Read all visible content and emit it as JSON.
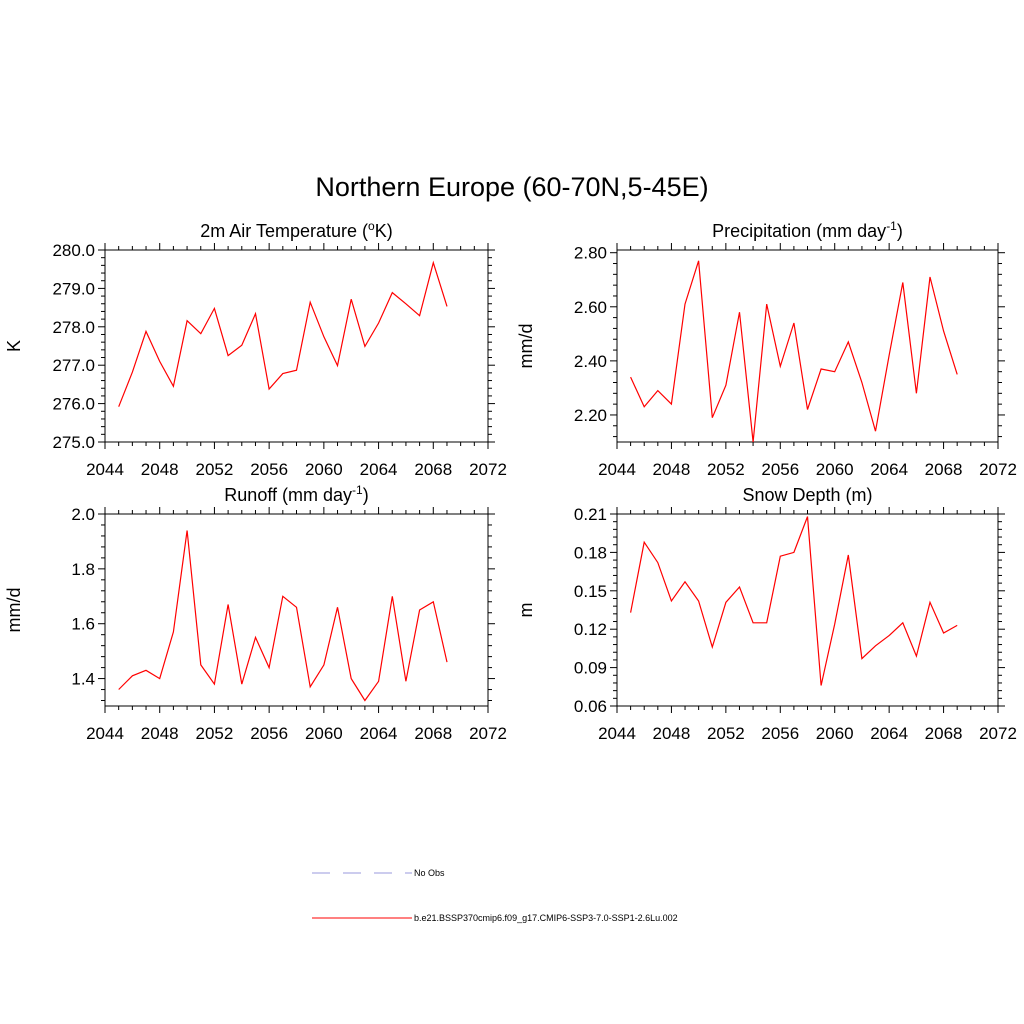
{
  "figure": {
    "title": "Northern Europe (60-70N,5-45E)"
  },
  "legend": {
    "entries": [
      {
        "label": "No Obs",
        "color": "#9999dd",
        "style": "dashed"
      },
      {
        "label": "b.e21.BSSP370cmip6.f09_g17.CMIP6-SSP3-7.0-SSP1-2.6Lu.002",
        "color": "#ff0000",
        "style": "solid"
      }
    ]
  },
  "chart_data": [
    {
      "type": "line",
      "title": "2m Air Temperature (°K)",
      "title_parts": {
        "base": "2m Air Temperature (",
        "sup": "o",
        "after": "K)"
      },
      "xlabel": "",
      "ylabel": "K",
      "xlim": [
        2044,
        2072
      ],
      "ylim": [
        275.0,
        280.0
      ],
      "xticks": [
        2044,
        2048,
        2052,
        2056,
        2060,
        2064,
        2068,
        2072
      ],
      "yticks": [
        275.0,
        276.0,
        277.0,
        278.0,
        279.0,
        280.0
      ],
      "ytick_labels": [
        "275.0",
        "276.0",
        "277.0",
        "278.0",
        "279.0",
        "280.0"
      ],
      "color": "#ff0000",
      "x": [
        2045,
        2046,
        2047,
        2048,
        2049,
        2050,
        2051,
        2052,
        2053,
        2054,
        2055,
        2056,
        2057,
        2058,
        2059,
        2060,
        2061,
        2062,
        2063,
        2064,
        2065,
        2066,
        2067,
        2068,
        2069
      ],
      "y": [
        275.92,
        276.82,
        277.88,
        277.1,
        276.45,
        278.16,
        277.82,
        278.48,
        277.25,
        277.52,
        278.34,
        276.38,
        276.78,
        276.87,
        278.64,
        277.74,
        276.99,
        278.72,
        277.49,
        278.1,
        278.89,
        278.6,
        278.29,
        279.67,
        278.53
      ]
    },
    {
      "type": "line",
      "title": "Precipitation (mm day⁻¹)",
      "title_parts": {
        "base": "Precipitation (mm day",
        "sup": "-1",
        "after": ")"
      },
      "xlabel": "",
      "ylabel": "mm/d",
      "xlim": [
        2044,
        2072
      ],
      "ylim": [
        2.1,
        2.81
      ],
      "xticks": [
        2044,
        2048,
        2052,
        2056,
        2060,
        2064,
        2068,
        2072
      ],
      "yticks": [
        2.2,
        2.4,
        2.6,
        2.8
      ],
      "ytick_labels": [
        "2.20",
        "2.40",
        "2.60",
        "2.80"
      ],
      "color": "#ff0000",
      "x": [
        2045,
        2046,
        2047,
        2048,
        2049,
        2050,
        2051,
        2052,
        2053,
        2054,
        2055,
        2056,
        2057,
        2058,
        2059,
        2060,
        2061,
        2062,
        2063,
        2064,
        2065,
        2066,
        2067,
        2068,
        2069
      ],
      "y": [
        2.34,
        2.23,
        2.29,
        2.24,
        2.61,
        2.77,
        2.19,
        2.31,
        2.58,
        2.1,
        2.61,
        2.38,
        2.54,
        2.22,
        2.37,
        2.36,
        2.47,
        2.32,
        2.14,
        2.42,
        2.69,
        2.28,
        2.71,
        2.51,
        2.35
      ]
    },
    {
      "type": "line",
      "title": "Runoff (mm day⁻¹)",
      "title_parts": {
        "base": "Runoff (mm day",
        "sup": "-1",
        "after": ")"
      },
      "xlabel": "",
      "ylabel": "mm/d",
      "xlim": [
        2044,
        2072
      ],
      "ylim": [
        1.3,
        2.0
      ],
      "xticks": [
        2044,
        2048,
        2052,
        2056,
        2060,
        2064,
        2068,
        2072
      ],
      "yticks": [
        1.4,
        1.6,
        1.8,
        2.0
      ],
      "ytick_labels": [
        "1.4",
        "1.6",
        "1.8",
        "2.0"
      ],
      "color": "#ff0000",
      "x": [
        2045,
        2046,
        2047,
        2048,
        2049,
        2050,
        2051,
        2052,
        2053,
        2054,
        2055,
        2056,
        2057,
        2058,
        2059,
        2060,
        2061,
        2062,
        2063,
        2064,
        2065,
        2066,
        2067,
        2068,
        2069
      ],
      "y": [
        1.36,
        1.41,
        1.43,
        1.4,
        1.57,
        1.94,
        1.45,
        1.38,
        1.67,
        1.38,
        1.55,
        1.44,
        1.7,
        1.66,
        1.37,
        1.45,
        1.66,
        1.4,
        1.32,
        1.39,
        1.7,
        1.39,
        1.65,
        1.68,
        1.46
      ]
    },
    {
      "type": "line",
      "title": "Snow Depth (m)",
      "title_parts": {
        "base": "Snow Depth (m)",
        "sup": "",
        "after": ""
      },
      "xlabel": "",
      "ylabel": "m",
      "xlim": [
        2044,
        2072
      ],
      "ylim": [
        0.06,
        0.21
      ],
      "xticks": [
        2044,
        2048,
        2052,
        2056,
        2060,
        2064,
        2068,
        2072
      ],
      "yticks": [
        0.06,
        0.09,
        0.12,
        0.15,
        0.18,
        0.21
      ],
      "ytick_labels": [
        "0.06",
        "0.09",
        "0.12",
        "0.15",
        "0.18",
        "0.21"
      ],
      "color": "#ff0000",
      "x": [
        2045,
        2046,
        2047,
        2048,
        2049,
        2050,
        2051,
        2052,
        2053,
        2054,
        2055,
        2056,
        2057,
        2058,
        2059,
        2060,
        2061,
        2062,
        2063,
        2064,
        2065,
        2066,
        2067,
        2068,
        2069
      ],
      "y": [
        0.133,
        0.188,
        0.172,
        0.142,
        0.157,
        0.142,
        0.106,
        0.141,
        0.153,
        0.125,
        0.125,
        0.177,
        0.18,
        0.208,
        0.076,
        0.124,
        0.178,
        0.097,
        0.107,
        0.115,
        0.125,
        0.099,
        0.141,
        0.117,
        0.123
      ]
    }
  ]
}
